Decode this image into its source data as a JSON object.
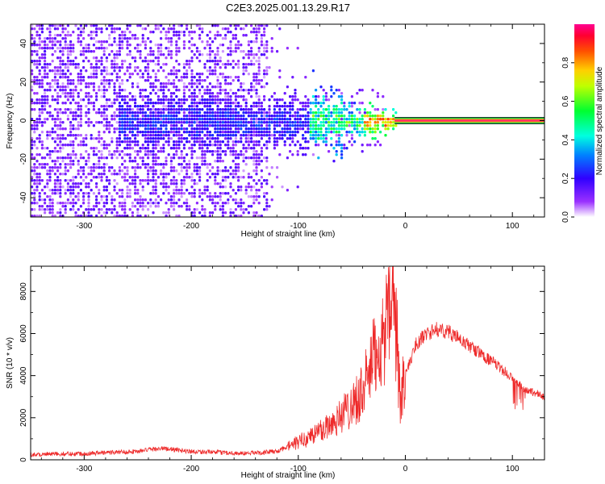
{
  "title": "C2E3.2025.001.13.29.R17",
  "colors": {
    "trace": "#ee2a2a",
    "line_core": "#ff2a6a",
    "line_halo": "#16c84a",
    "sparse": "#7a10e8"
  },
  "colorbar": {
    "label": "Normalized spectral amplitude",
    "range": [
      0,
      1
    ],
    "ticks": [
      0.0,
      0.2,
      0.4,
      0.6,
      0.8
    ],
    "tick_labels": [
      "0.0",
      "0.2",
      "0.4",
      "0.6",
      "0.8"
    ],
    "colormap": [
      "#ffffff",
      "#8000ff",
      "#0000ff",
      "#00ffff",
      "#00ff00",
      "#ffff00",
      "#ff8000",
      "#ff0000",
      "#ff0080"
    ]
  },
  "chart_data": [
    {
      "type": "heatmap",
      "xlabel": "Height of straight line (km)",
      "ylabel": "Frequency (Hz)",
      "xlim": [
        -350,
        130
      ],
      "ylim": [
        -50,
        50
      ],
      "xticks": [
        -300,
        -200,
        -100,
        0,
        100
      ],
      "xtick_labels": [
        "-300",
        "-200",
        "-100",
        "0",
        "100"
      ],
      "yticks": [
        -40,
        -20,
        0,
        20,
        40
      ],
      "ytick_labels": [
        "-40",
        "-20",
        "0",
        "20",
        "40"
      ],
      "features": {
        "sparse_noise_xrange": [
          -350,
          -130
        ],
        "spread_echo_xrange": [
          -270,
          -10
        ],
        "narrow_line_start": -10,
        "narrow_line_frequency": 0,
        "narrow_line_amplitude": 0.95
      }
    },
    {
      "type": "line",
      "xlabel": "Height of straight line (km)",
      "ylabel": "SNR (10 * v/v)",
      "xlim": [
        -350,
        130
      ],
      "ylim": [
        0,
        9200
      ],
      "xticks": [
        -300,
        -200,
        -100,
        0,
        100
      ],
      "xtick_labels": [
        "-300",
        "-200",
        "-100",
        "0",
        "100"
      ],
      "yticks": [
        0,
        2000,
        4000,
        6000,
        8000
      ],
      "ytick_labels": [
        "0",
        "2000",
        "4000",
        "6000",
        "8000"
      ],
      "series": [
        {
          "x": [
            -350,
            -300,
            -250,
            -230,
            -200,
            -150,
            -120,
            -100,
            -80,
            -60,
            -40,
            -25,
            -15,
            -10,
            -5,
            0,
            10,
            20,
            30,
            40,
            60,
            80,
            100,
            110,
            120,
            130
          ],
          "values": [
            250,
            300,
            400,
            550,
            400,
            300,
            400,
            800,
            1300,
            2000,
            3100,
            5200,
            6200,
            6500,
            2800,
            4000,
            5500,
            6000,
            6200,
            6100,
            5400,
            4700,
            3900,
            3400,
            3200,
            3000
          ]
        }
      ]
    }
  ]
}
